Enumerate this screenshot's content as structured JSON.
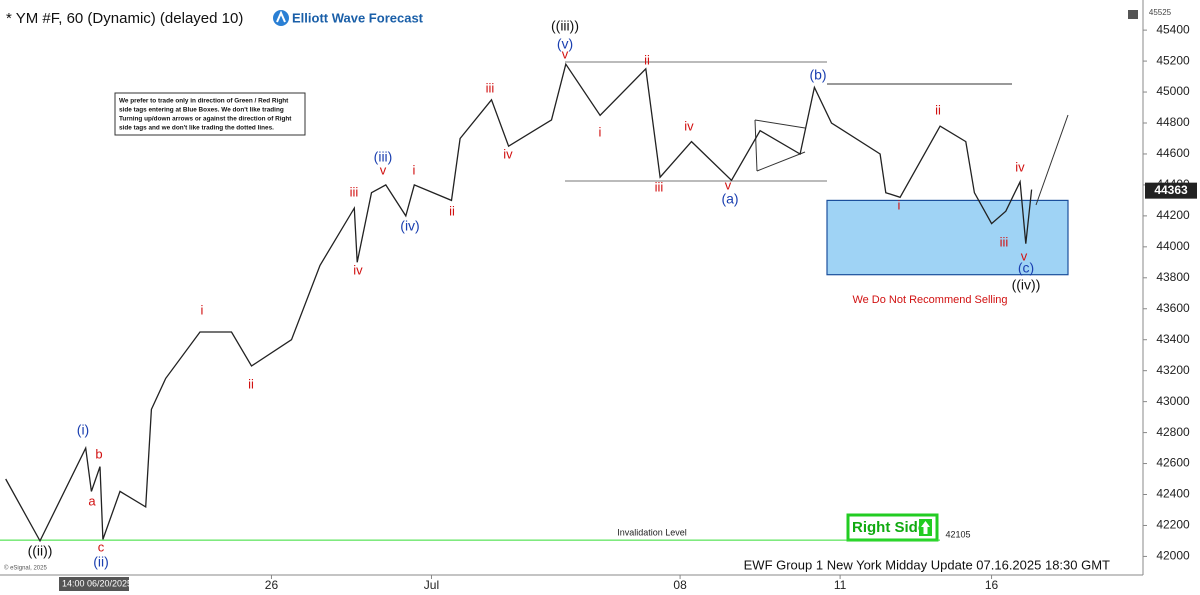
{
  "chart_data": {
    "type": "line",
    "title": "* YM #F, 60 (Dynamic) (delayed 10)",
    "brand": "Elliott Wave Forecast",
    "note_lines": [
      "We prefer to trade only in direction of Green / Red Right",
      "side tags entering at Blue Boxes. We don't like trading",
      "Turning up/down arrows or against the direction of Right",
      "side tags and we don't like trading the dotted lines."
    ],
    "footer": "EWF Group 1 New York Midday Update 07.16.2025 18:30 GMT",
    "copyright": "© eSignal, 2025",
    "start_label": "14:00 06/20/2025",
    "top_label": 45525,
    "last_price": 44363,
    "invalidation_label": "Invalidation Level",
    "invalidation_value": 42105,
    "right_side_label": "Right Side",
    "blue_box": [
      43820,
      44300
    ],
    "line_color": "#222222",
    "series": [
      {
        "name": "YM #F",
        "x": [
          2,
          14,
          30,
          32,
          35,
          36,
          42,
          51,
          53,
          58,
          70,
          81,
          88,
          102,
          112,
          124,
          125,
          130,
          135,
          142,
          145,
          158,
          161,
          172,
          178,
          193,
          198,
          210,
          226,
          231,
          242,
          256,
          266,
          280,
          285,
          291,
          308,
          310,
          315,
          329,
          338,
          341,
          347,
          352,
          357,
          359,
          361
        ],
        "values": [
          42500,
          42100,
          42700,
          42420,
          42580,
          42110,
          42420,
          42320,
          42950,
          43150,
          43450,
          43450,
          43230,
          43400,
          43880,
          44250,
          43900,
          44350,
          44400,
          44200,
          44400,
          44300,
          44700,
          44950,
          44650,
          44820,
          45180,
          44850,
          45150,
          44450,
          44680,
          44430,
          44750,
          44600,
          45030,
          44800,
          44600,
          44350,
          44320,
          44780,
          44680,
          44350,
          44150,
          44230,
          44420,
          44020,
          44370
        ]
      }
    ],
    "xlim": [
      0,
      400
    ],
    "xticks": [
      {
        "value": 95,
        "label": "26"
      },
      {
        "value": 151,
        "label": "Jul"
      },
      {
        "value": 238,
        "label": "08"
      },
      {
        "value": 294,
        "label": "11"
      },
      {
        "value": 347,
        "label": "16"
      }
    ],
    "ylim": [
      41880,
      45530
    ],
    "yticks": [
      42000,
      42200,
      42400,
      42600,
      42800,
      43000,
      43200,
      43400,
      43600,
      43800,
      44000,
      44200,
      44400,
      44600,
      44800,
      45000,
      45200,
      45400
    ],
    "annotations": [
      {
        "text": "((ii))",
        "color": "#111111"
      },
      {
        "text": "(i)",
        "color": "#1a3fb0"
      },
      {
        "text": "a",
        "color": "#d11111"
      },
      {
        "text": "b",
        "color": "#d11111"
      },
      {
        "text": "c",
        "color": "#d11111"
      },
      {
        "text": "(ii)",
        "color": "#1a3fb0"
      },
      {
        "text": "i",
        "color": "#d11111"
      },
      {
        "text": "ii",
        "color": "#d11111"
      },
      {
        "text": "iii",
        "color": "#d11111"
      },
      {
        "text": "iv",
        "color": "#d11111"
      },
      {
        "text": "(iii)",
        "color": "#1a3fb0"
      },
      {
        "text": "v",
        "color": "#d11111"
      },
      {
        "text": "i",
        "color": "#d11111"
      },
      {
        "text": "(iv)",
        "color": "#1a3fb0"
      },
      {
        "text": "ii",
        "color": "#d11111"
      },
      {
        "text": "iii",
        "color": "#d11111"
      },
      {
        "text": "iv",
        "color": "#d11111"
      },
      {
        "text": "((iii))",
        "color": "#111111"
      },
      {
        "text": "(v)",
        "color": "#1a3fb0"
      },
      {
        "text": "v",
        "color": "#d11111"
      },
      {
        "text": "i",
        "color": "#d11111"
      },
      {
        "text": "ii",
        "color": "#d11111"
      },
      {
        "text": "iii",
        "color": "#d11111"
      },
      {
        "text": "iv",
        "color": "#d11111"
      },
      {
        "text": "v",
        "color": "#d11111"
      },
      {
        "text": "(a)",
        "color": "#1a3fb0"
      },
      {
        "text": "(b)",
        "color": "#1a3fb0"
      },
      {
        "text": "ii",
        "color": "#d11111"
      },
      {
        "text": "i",
        "color": "#d11111"
      },
      {
        "text": "iii",
        "color": "#d11111"
      },
      {
        "text": "iv",
        "color": "#d11111"
      },
      {
        "text": "v",
        "color": "#d11111"
      },
      {
        "text": "(c)",
        "color": "#1a3fb0"
      },
      {
        "text": "((iv))",
        "color": "#111111"
      },
      {
        "text": "We Do Not Recommend Selling",
        "color": "#d11111"
      }
    ]
  }
}
